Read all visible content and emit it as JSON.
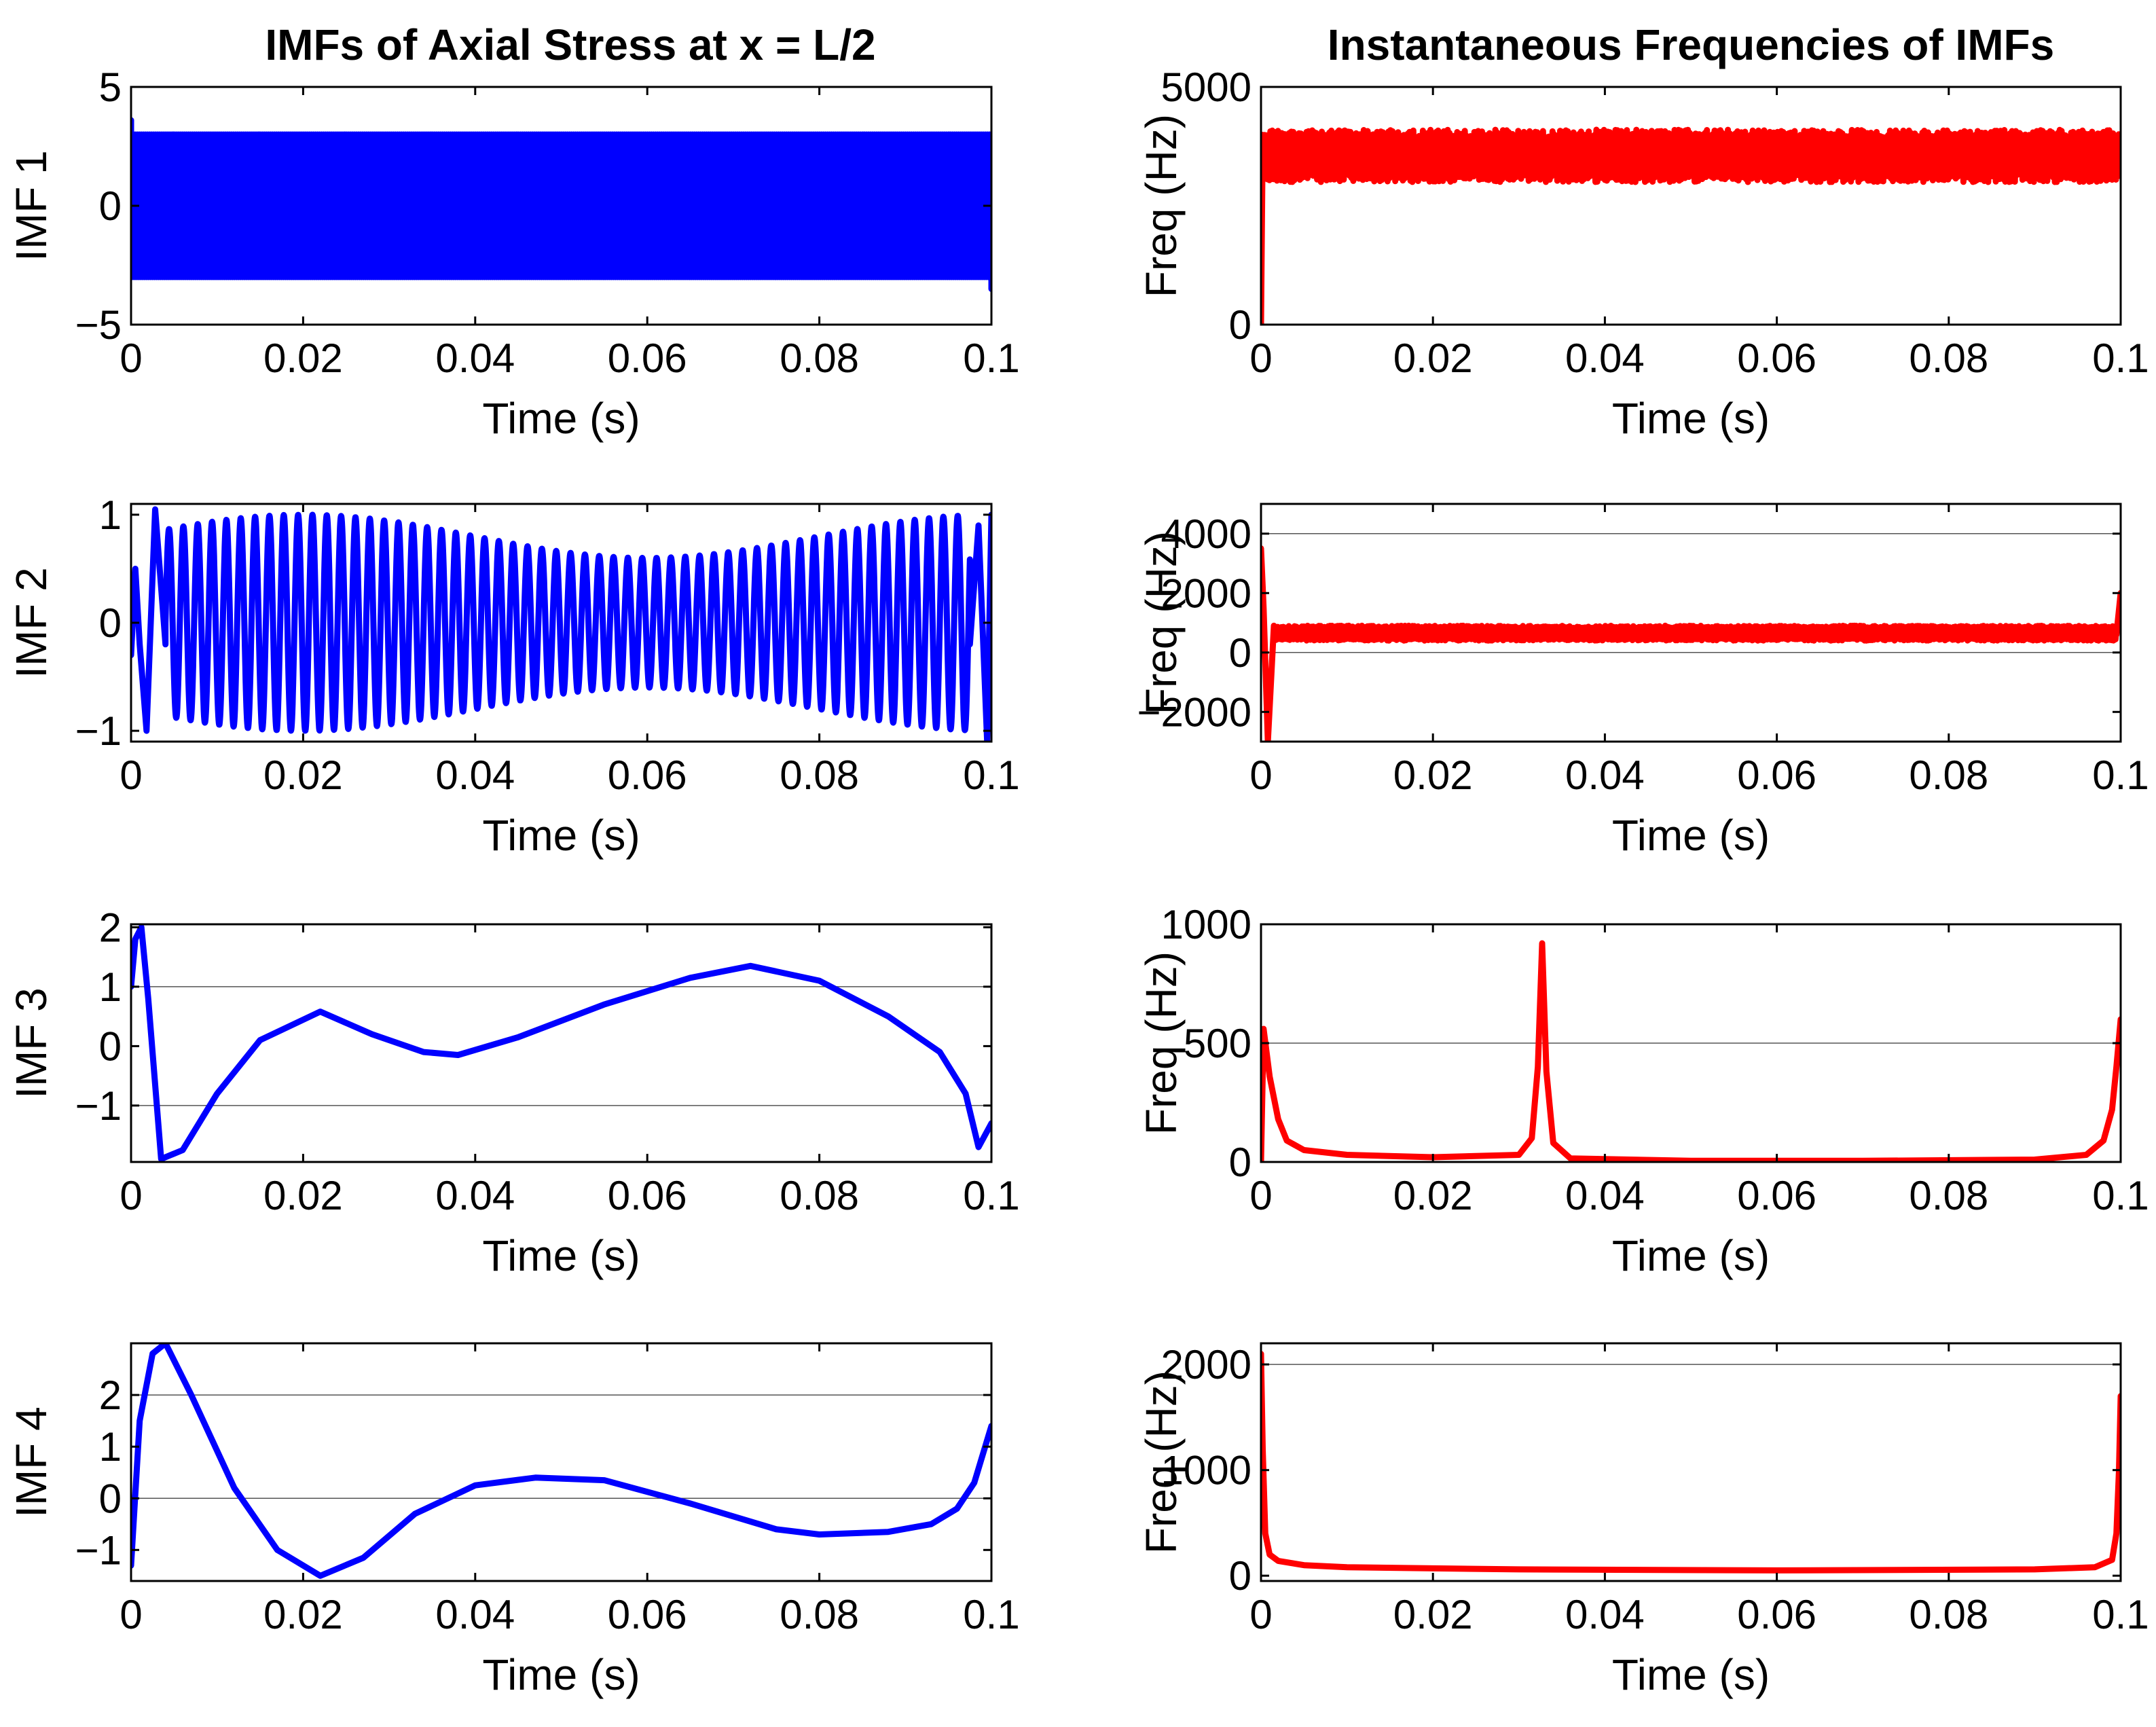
{
  "figure": {
    "left_title": "IMFs of Axial Stress at x = L/2",
    "right_title": "Instantaneous Frequencies of IMFs"
  },
  "colors": {
    "imf": "#0000ff",
    "freq": "#ff0000",
    "axis": "#000000",
    "grid": "#555555"
  },
  "chart_data": [
    {
      "id": "imf1",
      "type": "line",
      "column": "left",
      "row": 0,
      "color": "#0000ff",
      "signal": "oscillation",
      "amplitude": 3.0,
      "cycles_drawn": 420,
      "edge_spikes": [
        {
          "x": 0.0,
          "y": 3.6
        },
        {
          "x": 0.1,
          "y": -3.5
        }
      ],
      "xlim": [
        0,
        0.1
      ],
      "ylim": [
        -5,
        5
      ],
      "xticks": [
        0,
        0.02,
        0.04,
        0.06,
        0.08,
        0.1
      ],
      "xtick_labels": [
        "0",
        "0.02",
        "0.04",
        "0.06",
        "0.08",
        "0.1"
      ],
      "yticks": [
        -5,
        0,
        5
      ],
      "ytick_labels": [
        "−5",
        "0",
        "5"
      ],
      "xlabel": "Time (s)",
      "ylabel": "IMF 1",
      "grid_y": []
    },
    {
      "id": "if1",
      "type": "line",
      "column": "right",
      "row": 0,
      "color": "#ff0000",
      "signal": "band",
      "band_min": 3000,
      "band_max": 4100,
      "start_value": 0,
      "xlim": [
        0,
        0.1
      ],
      "ylim": [
        0,
        5000
      ],
      "xticks": [
        0,
        0.02,
        0.04,
        0.06,
        0.08,
        0.1
      ],
      "xtick_labels": [
        "0",
        "0.02",
        "0.04",
        "0.06",
        "0.08",
        "0.1"
      ],
      "yticks": [
        0,
        5000
      ],
      "ytick_labels": [
        "0",
        "5000"
      ],
      "xlabel": "Time (s)",
      "ylabel": "Freq (Hz)",
      "grid_y": []
    },
    {
      "id": "imf2",
      "type": "line",
      "column": "left",
      "row": 1,
      "color": "#0000ff",
      "signal": "oscillation",
      "amplitude": 0.8,
      "modulation": 0.2,
      "cycles": 60,
      "edge_points": [
        [
          0,
          -0.3
        ],
        [
          0.0005,
          0.5
        ],
        [
          0.001,
          -0.2
        ],
        [
          0.0018,
          -1.0
        ],
        [
          0.0028,
          1.05
        ],
        [
          0.004,
          -0.2
        ]
      ],
      "end_points": [
        [
          0.0975,
          -0.2
        ],
        [
          0.0985,
          0.9
        ],
        [
          0.0995,
          -1.1
        ],
        [
          0.1,
          1.0
        ]
      ],
      "xlim": [
        0,
        0.1
      ],
      "ylim": [
        -1.1,
        1.1
      ],
      "xticks": [
        0,
        0.02,
        0.04,
        0.06,
        0.08,
        0.1
      ],
      "xtick_labels": [
        "0",
        "0.02",
        "0.04",
        "0.06",
        "0.08",
        "0.1"
      ],
      "yticks": [
        -1,
        0,
        1
      ],
      "ytick_labels": [
        "−1",
        "0",
        "1"
      ],
      "xlabel": "Time (s)",
      "ylabel": "IMF 2",
      "grid_y": []
    },
    {
      "id": "if2",
      "type": "line",
      "column": "right",
      "row": 1,
      "color": "#ff0000",
      "signal": "band",
      "band_min": 400,
      "band_max": 900,
      "edge_points": [
        [
          0,
          3500
        ],
        [
          0.0003,
          1500
        ],
        [
          0.0008,
          -3000
        ],
        [
          0.0015,
          900
        ]
      ],
      "end_points": [
        [
          0.0995,
          600
        ],
        [
          0.1,
          2000
        ]
      ],
      "xlim": [
        0,
        0.1
      ],
      "ylim": [
        -3000,
        5000
      ],
      "xticks": [
        0,
        0.02,
        0.04,
        0.06,
        0.08,
        0.1
      ],
      "xtick_labels": [
        "0",
        "0.02",
        "0.04",
        "0.06",
        "0.08",
        "0.1"
      ],
      "yticks": [
        -2000,
        0,
        2000,
        4000
      ],
      "ytick_labels": [
        "−2000",
        "0",
        "2000",
        "4000"
      ],
      "xlabel": "Time (s)",
      "ylabel": "Freq (Hz)",
      "grid_y": [
        0,
        4000
      ]
    },
    {
      "id": "imf3",
      "type": "line",
      "column": "left",
      "row": 2,
      "color": "#0000ff",
      "x": [
        0,
        0.0005,
        0.0012,
        0.002,
        0.0035,
        0.006,
        0.01,
        0.015,
        0.022,
        0.028,
        0.034,
        0.038,
        0.045,
        0.055,
        0.065,
        0.072,
        0.08,
        0.088,
        0.094,
        0.097,
        0.0985,
        0.1
      ],
      "y": [
        1.0,
        1.8,
        2.0,
        0.8,
        -1.9,
        -1.75,
        -0.8,
        0.1,
        0.58,
        0.2,
        -0.1,
        -0.15,
        0.15,
        0.7,
        1.15,
        1.35,
        1.1,
        0.5,
        -0.1,
        -0.8,
        -1.7,
        -1.3
      ],
      "xlim": [
        0,
        0.1
      ],
      "ylim": [
        -1.95,
        2.05
      ],
      "xticks": [
        0,
        0.02,
        0.04,
        0.06,
        0.08,
        0.1
      ],
      "xtick_labels": [
        "0",
        "0.02",
        "0.04",
        "0.06",
        "0.08",
        "0.1"
      ],
      "yticks": [
        -1,
        0,
        1,
        2
      ],
      "ytick_labels": [
        "−1",
        "0",
        "1",
        "2"
      ],
      "xlabel": "Time (s)",
      "ylabel": "IMF 3",
      "grid_y": [
        -1,
        1
      ]
    },
    {
      "id": "if3",
      "type": "line",
      "column": "right",
      "row": 2,
      "color": "#ff0000",
      "x": [
        0,
        0.0003,
        0.001,
        0.002,
        0.003,
        0.005,
        0.01,
        0.02,
        0.03,
        0.0315,
        0.0322,
        0.0327,
        0.0332,
        0.034,
        0.036,
        0.05,
        0.07,
        0.09,
        0.096,
        0.098,
        0.099,
        0.0995,
        0.1
      ],
      "y": [
        0,
        560,
        360,
        180,
        90,
        50,
        30,
        20,
        30,
        100,
        400,
        920,
        380,
        80,
        15,
        5,
        5,
        10,
        30,
        90,
        220,
        400,
        600
      ],
      "xlim": [
        0,
        0.1
      ],
      "ylim": [
        0,
        1000
      ],
      "xticks": [
        0,
        0.02,
        0.04,
        0.06,
        0.08,
        0.1
      ],
      "xtick_labels": [
        "0",
        "0.02",
        "0.04",
        "0.06",
        "0.08",
        "0.1"
      ],
      "yticks": [
        0,
        500,
        1000
      ],
      "ytick_labels": [
        "0",
        "500",
        "1000"
      ],
      "xlabel": "Time (s)",
      "ylabel": "Freq (Hz)",
      "grid_y": [
        500
      ]
    },
    {
      "id": "imf4",
      "type": "line",
      "column": "left",
      "row": 3,
      "color": "#0000ff",
      "x": [
        0,
        0.001,
        0.0025,
        0.004,
        0.007,
        0.012,
        0.017,
        0.022,
        0.027,
        0.033,
        0.04,
        0.047,
        0.055,
        0.065,
        0.075,
        0.08,
        0.088,
        0.093,
        0.096,
        0.098,
        0.1
      ],
      "y": [
        -1.3,
        1.5,
        2.8,
        3.0,
        2.0,
        0.2,
        -1.0,
        -1.5,
        -1.15,
        -0.3,
        0.25,
        0.4,
        0.35,
        -0.1,
        -0.6,
        -0.7,
        -0.65,
        -0.5,
        -0.2,
        0.3,
        1.4
      ],
      "xlim": [
        0,
        0.1
      ],
      "ylim": [
        -1.6,
        3.0
      ],
      "xticks": [
        0,
        0.02,
        0.04,
        0.06,
        0.08,
        0.1
      ],
      "xtick_labels": [
        "0",
        "0.02",
        "0.04",
        "0.06",
        "0.08",
        "0.1"
      ],
      "yticks": [
        -1,
        0,
        1,
        2
      ],
      "ytick_labels": [
        "−1",
        "0",
        "1",
        "2"
      ],
      "xlabel": "Time (s)",
      "ylabel": "IMF 4",
      "grid_y": [
        0,
        2
      ]
    },
    {
      "id": "if4",
      "type": "line",
      "column": "right",
      "row": 3,
      "color": "#ff0000",
      "x": [
        0,
        0.0002,
        0.0005,
        0.001,
        0.002,
        0.005,
        0.01,
        0.03,
        0.06,
        0.09,
        0.097,
        0.099,
        0.0995,
        0.0998,
        0.1
      ],
      "y": [
        2100,
        1200,
        400,
        200,
        140,
        100,
        80,
        60,
        50,
        60,
        80,
        150,
        400,
        1000,
        1700
      ],
      "xlim": [
        0,
        0.1
      ],
      "ylim": [
        -50,
        2200
      ],
      "xticks": [
        0,
        0.02,
        0.04,
        0.06,
        0.08,
        0.1
      ],
      "xtick_labels": [
        "0",
        "0.02",
        "0.04",
        "0.06",
        "0.08",
        "0.1"
      ],
      "yticks": [
        0,
        1000,
        2000
      ],
      "ytick_labels": [
        "0",
        "1000",
        "2000"
      ],
      "xlabel": "Time (s)",
      "ylabel": "Freq (Hz)",
      "grid_y": [
        2000
      ]
    }
  ]
}
